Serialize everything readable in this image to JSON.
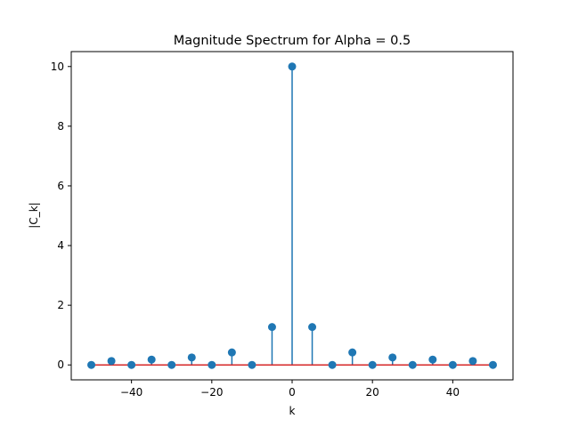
{
  "chart_data": {
    "type": "stem",
    "title": "Magnitude Spectrum for Alpha = 0.5",
    "xlabel": "k",
    "ylabel": "|C_k|",
    "xlim": [
      -55,
      55
    ],
    "ylim": [
      -0.5,
      10.5
    ],
    "xticks": [
      -40,
      -20,
      0,
      20,
      40
    ],
    "xtick_labels": [
      "−40",
      "−20",
      "0",
      "20",
      "40"
    ],
    "yticks": [
      0,
      2,
      4,
      6,
      8,
      10
    ],
    "ytick_labels": [
      "0",
      "2",
      "4",
      "6",
      "8",
      "10"
    ],
    "grid": false,
    "x": [
      -50,
      -45,
      -40,
      -35,
      -30,
      -25,
      -20,
      -15,
      -10,
      -5,
      0,
      5,
      10,
      15,
      20,
      25,
      30,
      35,
      40,
      45,
      50
    ],
    "values": [
      0.0,
      0.13,
      0.0,
      0.18,
      0.0,
      0.25,
      0.0,
      0.42,
      0.0,
      1.27,
      10.0,
      1.27,
      0.0,
      0.42,
      0.0,
      0.25,
      0.0,
      0.18,
      0.0,
      0.13,
      0.0
    ],
    "colors": {
      "stem": "#1f77b4",
      "marker": "#1f77b4",
      "baseline": "#d62728"
    }
  }
}
